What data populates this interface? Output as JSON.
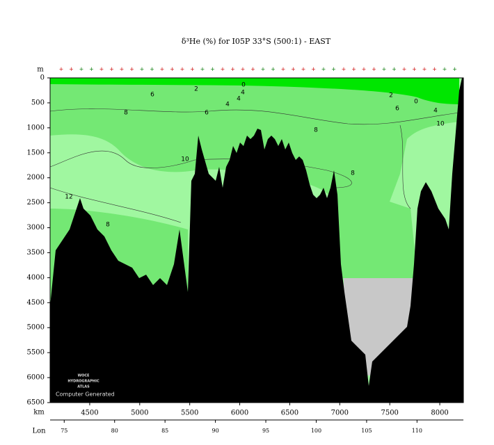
{
  "chart_data": {
    "type": "section",
    "title": "δ³He (%) for I05P 33°S (500:1) - EAST",
    "y_label": "m",
    "x_label": "km",
    "x2_label": "Lon",
    "xlim": [
      4104,
      8236
    ],
    "xticks": [
      4500,
      5000,
      5500,
      6000,
      6500,
      7000,
      7500,
      8000
    ],
    "ylim": [
      0,
      6500
    ],
    "yticks": [
      0,
      500,
      1000,
      1500,
      2000,
      2500,
      3000,
      3500,
      4000,
      4500,
      5000,
      5500,
      6000,
      6500
    ],
    "x2lim": [
      73.6,
      114.6
    ],
    "x2ticks": [
      75,
      80,
      85,
      90,
      95,
      100,
      105,
      110
    ],
    "contour_labels": [
      0,
      2,
      4,
      4,
      4,
      6,
      6,
      8,
      8,
      10,
      12,
      8,
      8,
      2,
      0,
      6,
      4,
      10
    ],
    "logo": [
      "WOCE",
      "HYDROGRAPHIC",
      "ATLAS"
    ],
    "note": "Computer Generated"
  }
}
